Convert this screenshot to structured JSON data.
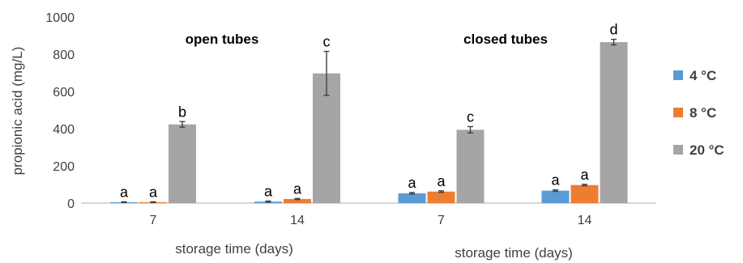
{
  "colors": {
    "axis": "#bfbfbf",
    "text": "#404040",
    "error_bar": "#404040",
    "series": [
      "#5b9bd5",
      "#ed7d31",
      "#a5a5a5"
    ]
  },
  "legend": {
    "placement": "right",
    "items": [
      "4 °C",
      "8 °C",
      "20 °C"
    ]
  },
  "chart_data": [
    {
      "type": "bar",
      "title": "open tubes",
      "xlabel": "storage time (days)",
      "ylabel": "propionic acid (mg/L)",
      "ylim": [
        0,
        1000
      ],
      "yticks": [
        "0",
        "200",
        "400",
        "600",
        "800",
        "1000"
      ],
      "grid": false,
      "categories": [
        "7",
        "14"
      ],
      "series": [
        {
          "name": "4 °C",
          "values": [
            5,
            8
          ],
          "errors": [
            2,
            3
          ],
          "labels": [
            "a",
            "a"
          ]
        },
        {
          "name": "8 °C",
          "values": [
            5,
            22
          ],
          "errors": [
            2,
            3
          ],
          "labels": [
            "a",
            "a"
          ]
        },
        {
          "name": "20 °C",
          "values": [
            423,
            697
          ],
          "errors": [
            15,
            118
          ],
          "labels": [
            "b",
            "c"
          ]
        }
      ]
    },
    {
      "type": "bar",
      "title": "closed tubes",
      "xlabel": "storage time (days)",
      "ylabel": "",
      "ylim": [
        0,
        1000
      ],
      "yticks": [],
      "grid": false,
      "categories": [
        "7",
        "14"
      ],
      "series": [
        {
          "name": "4 °C",
          "values": [
            53,
            67
          ],
          "errors": [
            4,
            4
          ],
          "labels": [
            "a",
            "a"
          ]
        },
        {
          "name": "8 °C",
          "values": [
            62,
            97
          ],
          "errors": [
            4,
            4
          ],
          "labels": [
            "a",
            "a"
          ]
        },
        {
          "name": "20 °C",
          "values": [
            394,
            865
          ],
          "errors": [
            17,
            15
          ],
          "labels": [
            "c",
            "d"
          ]
        }
      ]
    }
  ]
}
